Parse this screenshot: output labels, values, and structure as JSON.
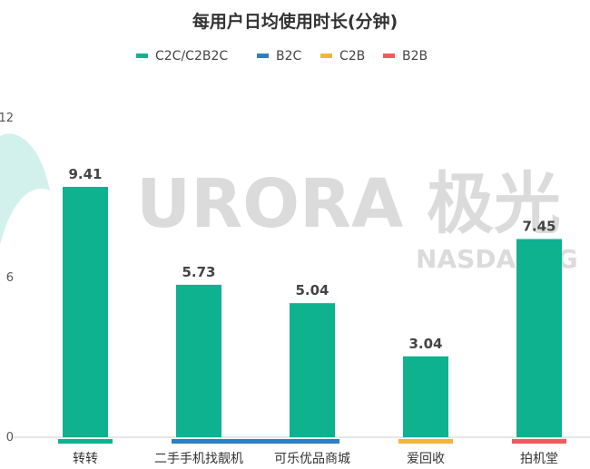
{
  "chart_data": {
    "type": "bar",
    "title": "每用户日均使用时长(分钟)",
    "categories": [
      "转转",
      "二手手机找靓机",
      "可乐优品商城",
      "爱回收",
      "拍机堂"
    ],
    "values": [
      9.41,
      5.73,
      5.04,
      3.04,
      7.45
    ],
    "data_labels": [
      "9.41",
      "5.73",
      "5.04",
      "3.04",
      "7.45"
    ],
    "category_series": [
      "C2C/C2B2C",
      "B2C",
      "B2C",
      "C2B",
      "B2B"
    ],
    "series": [
      {
        "name": "C2C/C2B2C",
        "color": "#0fb28f"
      },
      {
        "name": "B2C",
        "color": "#2a80c4"
      },
      {
        "name": "C2B",
        "color": "#f2b43a"
      },
      {
        "name": "B2B",
        "color": "#f05a5e"
      }
    ],
    "bar_color": "#0fb28f",
    "y_ticks": [
      "0",
      "6",
      "12"
    ],
    "ylim": [
      0,
      12
    ],
    "legend_position": "top-center",
    "grid": false
  },
  "watermark": {
    "brand": "URORA 极光",
    "sub": "NASDAQ:JG"
  }
}
